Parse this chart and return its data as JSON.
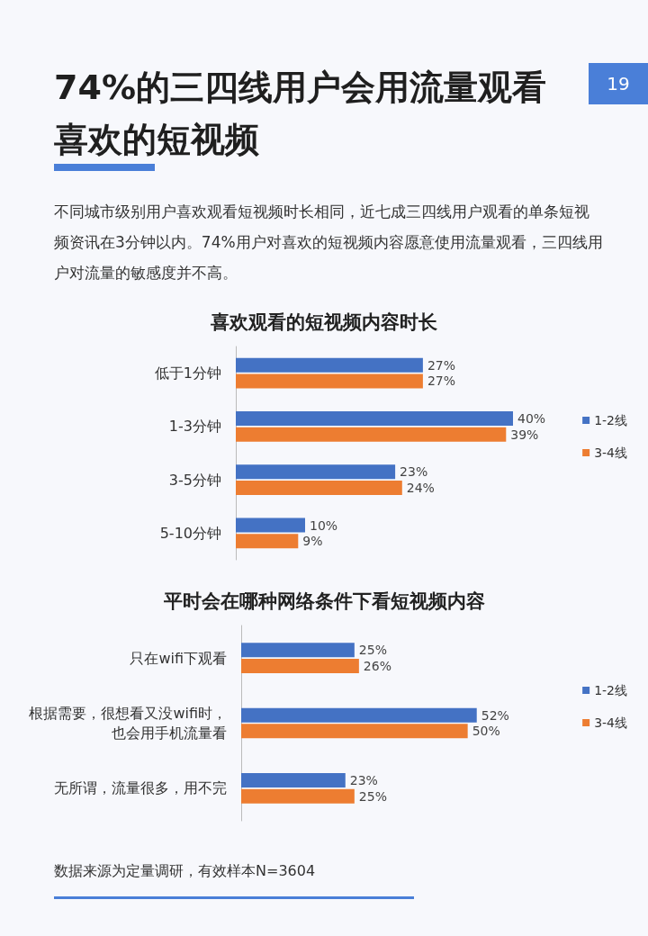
{
  "chart_data": [
    {
      "type": "bar",
      "orientation": "horizontal",
      "title": "喜欢观看的短视频内容时长",
      "legend": "right",
      "tick_labels": "y",
      "annotations": [
        "74%的三四线用户会用流量观看喜欢的短视频",
        "不同城市级别用户喜欢观看短视频时长相同，近七成三四线用户观看的单条短视频资讯在3分钟以内。74%用户对喜欢的短视频内容愿意使用流量观看，三四线用户对流量的敏感度并不高。",
        "19"
      ],
      "categories": [
        "低于1分钟",
        "1-3分钟",
        "3-5分钟",
        "5-10分钟"
      ],
      "series": [
        {
          "name": "1-2线",
          "color": "#4472c4",
          "values": [
            27,
            40,
            23,
            10
          ],
          "value_labels": [
            "27%",
            "40%",
            "23%",
            "10%"
          ]
        },
        {
          "name": "3-4线",
          "color": "#ed7d31",
          "values": [
            27,
            39,
            24,
            9
          ],
          "value_labels": [
            "27%",
            "39%",
            "24%",
            "9%"
          ]
        }
      ]
    },
    {
      "type": "bar",
      "orientation": "horizontal",
      "title": "平时会在哪种网络条件下看短视频内容",
      "legend": "right",
      "tick_labels": "y",
      "annotations": [
        "数据来源为定量调研，有效样本N=3604"
      ],
      "categories": [
        "只在wifi下观看",
        "根据需要，很想看又没wifi时，也会用手机流量看",
        "无所谓，流量很多，用不完"
      ],
      "series": [
        {
          "name": "1-2线",
          "color": "#4472c4",
          "values": [
            25,
            52,
            23
          ],
          "value_labels": [
            "25%",
            "52%",
            "23%"
          ]
        },
        {
          "name": "3-4线",
          "color": "#ed7d31",
          "values": [
            26,
            50,
            25
          ],
          "value_labels": [
            "26%",
            "50%",
            "25%"
          ]
        }
      ]
    }
  ]
}
